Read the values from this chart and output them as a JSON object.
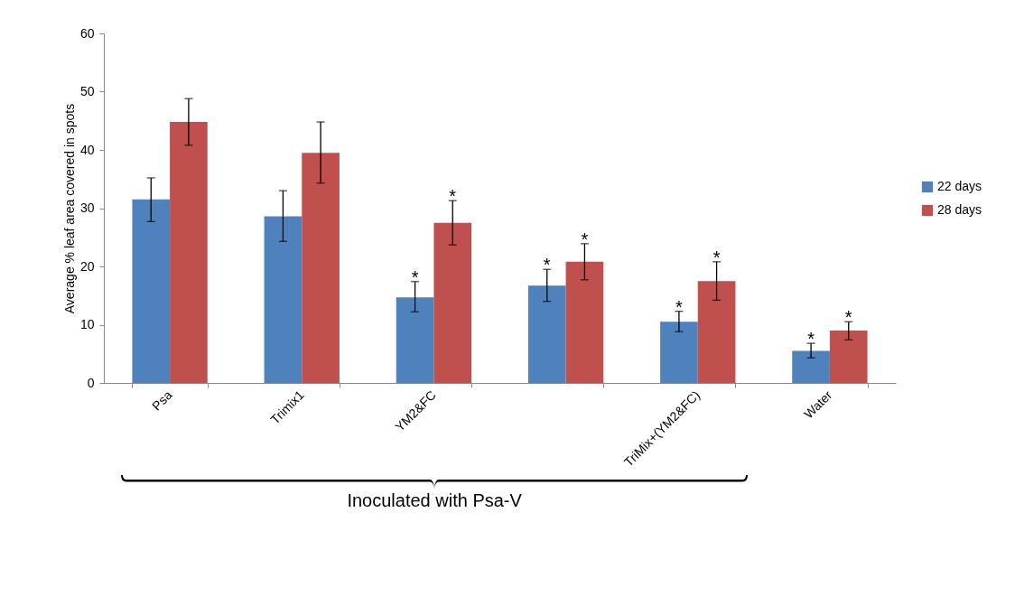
{
  "chart_data": {
    "type": "bar",
    "ylabel": "Average % leaf area covered in spots",
    "categories": [
      "Psa",
      "Trimix1",
      "YM2&FC",
      null,
      "TriMix+(YM2&FC)",
      "Water"
    ],
    "series": [
      {
        "name": "22 days",
        "color": "#4f81bd",
        "values": [
          31.5,
          28.6,
          14.7,
          16.7,
          10.5,
          5.5
        ],
        "errors": [
          [
            27.7,
            35.2
          ],
          [
            24.3,
            33.0
          ],
          [
            12.2,
            17.4
          ],
          [
            14.0,
            19.5
          ],
          [
            8.8,
            12.3
          ],
          [
            4.3,
            6.8
          ]
        ],
        "value_labels": [
          null,
          null,
          "*",
          "*",
          "*",
          "*"
        ]
      },
      {
        "name": "28 days",
        "color": "#c0504d",
        "values": [
          44.8,
          39.5,
          27.5,
          20.8,
          17.5,
          9.0
        ],
        "errors": [
          [
            40.8,
            48.8
          ],
          [
            34.3,
            44.8
          ],
          [
            23.7,
            31.3
          ],
          [
            17.7,
            23.9
          ],
          [
            14.2,
            20.8
          ],
          [
            7.4,
            10.5
          ]
        ],
        "value_labels": [
          null,
          null,
          "*",
          "*",
          "*",
          "*"
        ]
      }
    ],
    "ylim": [
      0,
      60
    ],
    "yticks": [
      0,
      10,
      20,
      30,
      40,
      50,
      60
    ],
    "legend": "right",
    "annotations": [
      "Inoculated with Psa-V"
    ]
  }
}
